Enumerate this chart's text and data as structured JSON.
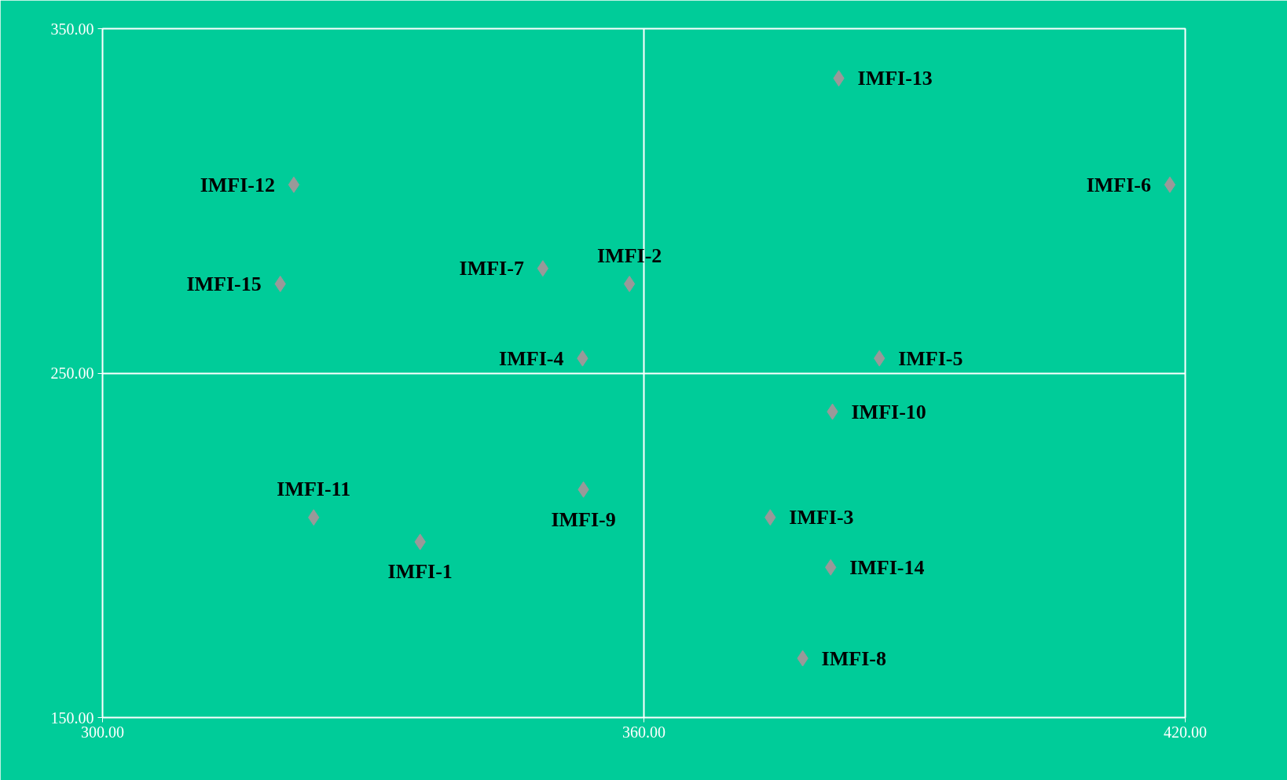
{
  "chart_data": {
    "type": "scatter",
    "marker": "diamond",
    "grid": true,
    "x": [
      335.2,
      358.4,
      374.0,
      353.2,
      386.1,
      418.3,
      348.8,
      377.6,
      353.3,
      380.9,
      323.4,
      321.2,
      381.6,
      380.7,
      319.7
    ],
    "values": [
      201.0,
      275.9,
      208.1,
      254.3,
      254.3,
      304.7,
      280.4,
      167.2,
      216.2,
      238.8,
      208.1,
      304.7,
      335.6,
      193.6,
      275.9
    ],
    "color": "#999999",
    "xlim": [
      300,
      420
    ],
    "ylim": [
      150,
      350
    ],
    "xticks": [
      {
        "value": 300,
        "label": "300.00"
      },
      {
        "value": 360,
        "label": "360.00"
      },
      {
        "value": 420,
        "label": "420.00"
      }
    ],
    "yticks": [
      {
        "value": 150,
        "label": "150.00"
      },
      {
        "value": 250,
        "label": "250.00"
      },
      {
        "value": 350,
        "label": "350.00"
      }
    ],
    "annotations": [
      {
        "text": "IMFI-1",
        "x": 335.2,
        "y": 201.0
      },
      {
        "text": "IMFI-2",
        "x": 358.4,
        "y": 275.9
      },
      {
        "text": "IMFI-3",
        "x": 374.0,
        "y": 208.1
      },
      {
        "text": "IMFI-4",
        "x": 353.2,
        "y": 254.3
      },
      {
        "text": "IMFI-5",
        "x": 386.1,
        "y": 254.3
      },
      {
        "text": "IMFI-6",
        "x": 418.3,
        "y": 304.7
      },
      {
        "text": "IMFI-7",
        "x": 348.8,
        "y": 280.4
      },
      {
        "text": "IMFI-8",
        "x": 377.6,
        "y": 167.2
      },
      {
        "text": "IMFI-9",
        "x": 353.3,
        "y": 216.2
      },
      {
        "text": "IMFI-10",
        "x": 380.9,
        "y": 238.8
      },
      {
        "text": "IMFI-11",
        "x": 323.4,
        "y": 208.1
      },
      {
        "text": "IMFI-12",
        "x": 321.2,
        "y": 304.7
      },
      {
        "text": "IMFI-13",
        "x": 381.6,
        "y": 335.6
      },
      {
        "text": "IMFI-14",
        "x": 380.7,
        "y": 193.6
      },
      {
        "text": "IMFI-15",
        "x": 319.7,
        "y": 275.9
      }
    ]
  }
}
